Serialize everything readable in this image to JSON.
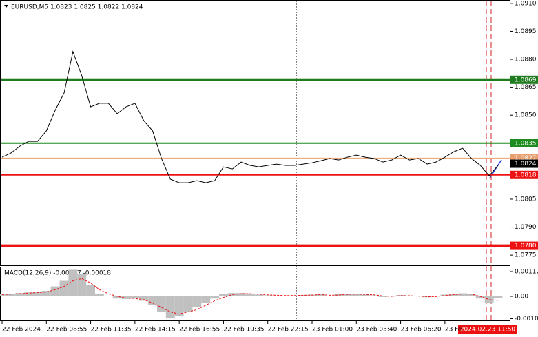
{
  "chart_data": {
    "type": "line",
    "title": "EURUSD,M5  1.0823 1.0825 1.0822 1.0824",
    "xlim": [
      0,
      56
    ],
    "xticks": [
      {
        "value": 0,
        "label": "22 Feb 2024"
      },
      {
        "value": 5,
        "label": "22 Feb 08:55"
      },
      {
        "value": 10,
        "label": "22 Feb 11:35"
      },
      {
        "value": 15,
        "label": "22 Feb 14:15"
      },
      {
        "value": 20,
        "label": "22 Feb 16:55"
      },
      {
        "value": 25,
        "label": "22 Feb 19:35"
      },
      {
        "value": 30,
        "label": "22 Feb 22:15"
      },
      {
        "value": 35,
        "label": "23 Feb 01:00"
      },
      {
        "value": 40,
        "label": "23 Feb 03:40"
      },
      {
        "value": 45,
        "label": "23 Feb 06:20"
      },
      {
        "value": 50,
        "label": "23 Fe"
      }
    ],
    "time_marker": "2024.02.23 11:50",
    "ylim": [
      1.07695,
      1.09118
    ],
    "yticks": [
      {
        "value": 1.091,
        "label": "1.0910"
      },
      {
        "value": 1.0895,
        "label": "1.0895"
      },
      {
        "value": 1.088,
        "label": "1.0880"
      },
      {
        "value": 1.0865,
        "label": "1.0865"
      },
      {
        "value": 1.085,
        "label": "1.0850"
      },
      {
        "value": 1.0805,
        "label": "1.0805"
      },
      {
        "value": 1.079,
        "label": "1.0790"
      },
      {
        "value": 1.0775,
        "label": "1.0775"
      }
    ],
    "series": [
      {
        "color": "#000000",
        "values": [
          1.08275,
          1.08297,
          1.08334,
          1.0836,
          1.0836,
          1.08416,
          1.08527,
          1.08619,
          1.08841,
          1.08712,
          1.08545,
          1.08564,
          1.08564,
          1.08508,
          1.08545,
          1.08564,
          1.08471,
          1.08416,
          1.08268,
          1.08157,
          1.08138,
          1.08138,
          1.08149,
          1.08138,
          1.08149,
          1.08223,
          1.08212,
          1.08249,
          1.08231,
          1.08223,
          1.08231,
          1.08238,
          1.08231,
          1.08231,
          1.08238,
          1.08245,
          1.08256,
          1.08268,
          1.0826,
          1.08275,
          1.08286,
          1.08275,
          1.08268,
          1.08249,
          1.0826,
          1.08286,
          1.0826,
          1.08268,
          1.08238,
          1.08249,
          1.08275,
          1.08304,
          1.08323,
          1.08268,
          1.08231,
          1.08175,
          1.08231
        ]
      }
    ],
    "levels": [
      {
        "value": 1.0869,
        "color": "#1e7b1e",
        "width": 4
      },
      {
        "value": 1.0835,
        "color": "#1e8c1e",
        "width": 2
      },
      {
        "value": 1.0827,
        "color": "#e8a070",
        "width": 1
      },
      {
        "value": 1.0824,
        "color": "#000000",
        "width": 0
      },
      {
        "value": 1.0818,
        "color": "#ee1111",
        "width": 2
      },
      {
        "value": 1.078,
        "label": "1.0780",
        "color": "#ee1111",
        "width": 4
      }
    ],
    "macd": {
      "title": "MACD(12,26,9) -0.00007 -0.00018",
      "ylim": [
        -0.00112,
        0.001307
      ],
      "yticks": [
        0.00112,
        {
          "value": 0,
          "label": "0.00"
        },
        -0.00101
      ],
      "histogram": {
        "color": "#c0c0c0",
        "values": [
          0.0001,
          0.00012,
          0.00015,
          0.00018,
          0.0002,
          0.00025,
          0.00045,
          0.0007,
          0.0012,
          0.001,
          0.0005,
          0.0001,
          0,
          -0.0001,
          -0.00012,
          -0.0001,
          -0.0002,
          -0.0004,
          -0.0007,
          -0.001,
          -0.0009,
          -0.0007,
          -0.0005,
          -0.0003,
          -0.0001,
          0.0001,
          0.00015,
          0.00015,
          0.00012,
          8e-05,
          5e-05,
          3e-05,
          3e-05,
          4e-05,
          6e-05,
          8e-05,
          0.0001,
          0,
          0.0001,
          0.00012,
          0.0001,
          8e-05,
          5e-05,
          -3e-05,
          0,
          6e-05,
          2e-05,
          0,
          -4e-05,
          0,
          8e-05,
          0.00012,
          0.00014,
          0.0001,
          -0.0001,
          -0.0003,
          -7e-05
        ]
      },
      "signal": {
        "color": "#ee1111",
        "values": [
          8e-05,
          0.0001,
          0.00012,
          0.00015,
          0.00017,
          0.0002,
          0.0003,
          0.00045,
          0.0007,
          0.0008,
          0.0006,
          0.0003,
          0.00012,
          0,
          -8e-05,
          -0.0001,
          -0.00015,
          -0.0003,
          -0.0005,
          -0.0007,
          -0.0008,
          -0.0007,
          -0.0006,
          -0.0004,
          -0.0002,
          -5e-05,
          8e-05,
          0.00012,
          0.00012,
          0.0001,
          7e-05,
          5e-05,
          4e-05,
          4e-05,
          5e-05,
          6e-05,
          8e-05,
          5e-05,
          6e-05,
          9e-05,
          0.0001,
          9e-05,
          7e-05,
          2e-05,
          0,
          3e-05,
          3e-05,
          1e-05,
          -1e-05,
          -1e-05,
          4e-05,
          8e-05,
          0.00011,
          0.0001,
          0,
          -0.00015,
          -0.00018
        ]
      }
    }
  }
}
